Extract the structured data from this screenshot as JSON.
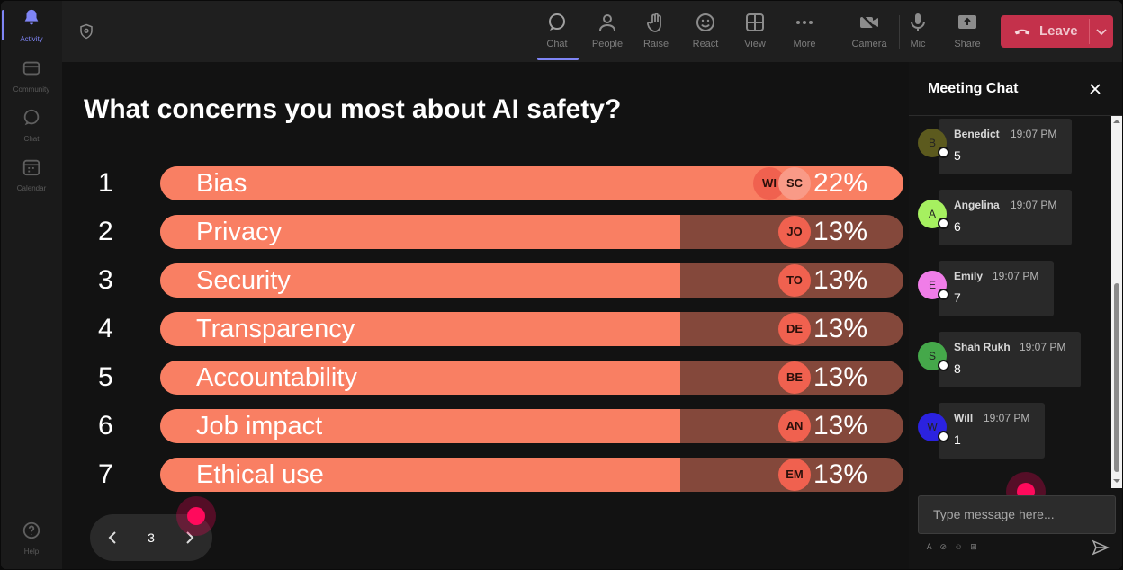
{
  "rail": {
    "items": [
      {
        "label": "Activity",
        "icon": "bell-icon"
      },
      {
        "label": "Community",
        "icon": "community-icon"
      },
      {
        "label": "Chat",
        "icon": "chat-icon"
      },
      {
        "label": "Calendar",
        "icon": "calendar-icon"
      }
    ],
    "help": {
      "label": "Help",
      "icon": "help-icon"
    }
  },
  "toolbar": {
    "items": [
      {
        "label": "Chat",
        "icon": "chat-icon"
      },
      {
        "label": "People",
        "icon": "people-icon"
      },
      {
        "label": "Raise",
        "icon": "raise-hand-icon"
      },
      {
        "label": "React",
        "icon": "smiley-icon"
      },
      {
        "label": "View",
        "icon": "grid-icon"
      },
      {
        "label": "More",
        "icon": "more-icon"
      },
      {
        "label": "Camera",
        "icon": "camera-off-icon"
      },
      {
        "label": "Mic",
        "icon": "mic-icon"
      },
      {
        "label": "Share",
        "icon": "share-icon"
      }
    ],
    "leave_label": "Leave",
    "leave_color": "#c4314b",
    "accent_color": "#7f85f5"
  },
  "poll": {
    "question": "What concerns you most about AI safety?",
    "bar_color": "#f97f63",
    "track_color": "#84483b",
    "options": [
      {
        "num": "1",
        "label": "Bias",
        "percent": "22%",
        "fraction": 1.0,
        "avatars": [
          "WI",
          "SC"
        ]
      },
      {
        "num": "2",
        "label": "Privacy",
        "percent": "13%",
        "fraction": 0.7,
        "avatars": [
          "JO"
        ]
      },
      {
        "num": "3",
        "label": "Security",
        "percent": "13%",
        "fraction": 0.7,
        "avatars": [
          "TO"
        ]
      },
      {
        "num": "4",
        "label": "Transparency",
        "percent": "13%",
        "fraction": 0.7,
        "avatars": [
          "DE"
        ]
      },
      {
        "num": "5",
        "label": "Accountability",
        "percent": "13%",
        "fraction": 0.7,
        "avatars": [
          "BE"
        ]
      },
      {
        "num": "6",
        "label": "Job impact",
        "percent": "13%",
        "fraction": 0.7,
        "avatars": [
          "AN"
        ]
      },
      {
        "num": "7",
        "label": "Ethical use",
        "percent": "13%",
        "fraction": 0.7,
        "avatars": [
          "EM"
        ]
      }
    ],
    "page": "3"
  },
  "chat": {
    "title": "Meeting Chat",
    "messages": [
      {
        "name": "Benedict",
        "initial": "B",
        "time": "19:07 PM",
        "text": "5",
        "color": "#5c5a1e"
      },
      {
        "name": "Angelina",
        "initial": "A",
        "time": "19:07 PM",
        "text": "6",
        "color": "#a6f060"
      },
      {
        "name": "Emily",
        "initial": "E",
        "time": "19:07 PM",
        "text": "7",
        "color": "#f07de8"
      },
      {
        "name": "Shah Rukh",
        "initial": "S",
        "time": "19:07 PM",
        "text": "8",
        "color": "#45a84a"
      },
      {
        "name": "Will",
        "initial": "W",
        "time": "19:07 PM",
        "text": "1",
        "color": "#2b22e0"
      }
    ],
    "input_placeholder": "Type message here...",
    "format_icons": "Ꭺ ⊘ ☺ ⊞"
  }
}
